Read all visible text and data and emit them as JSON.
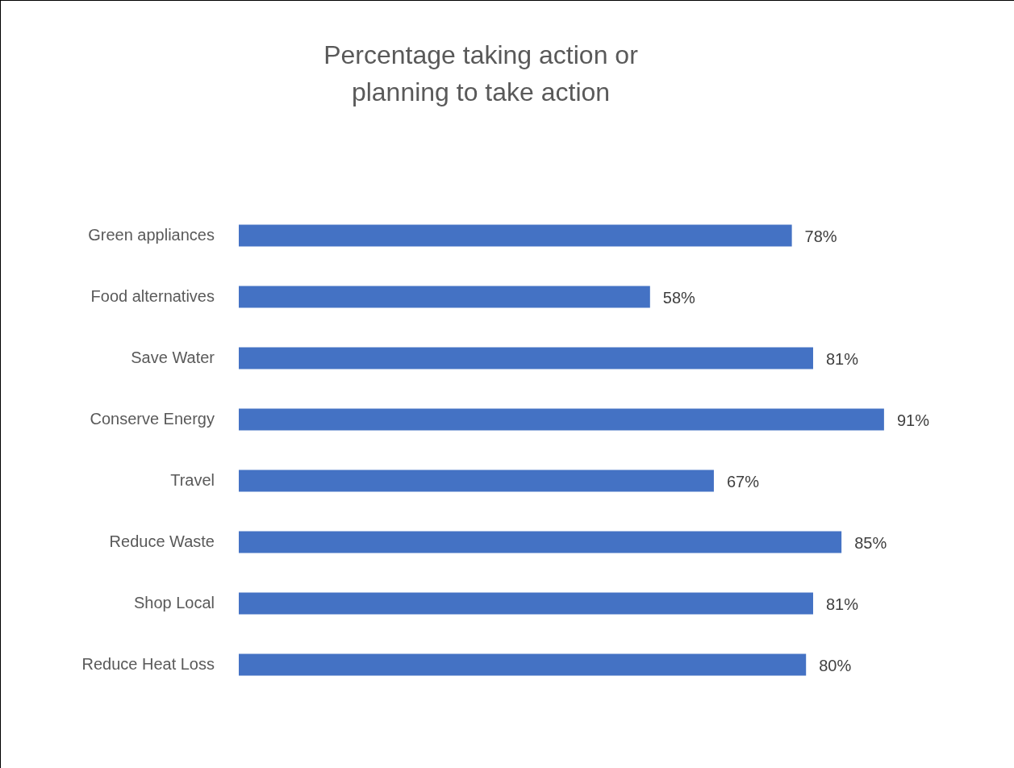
{
  "chart_data": {
    "type": "bar",
    "orientation": "horizontal",
    "title": "Percentage taking action or planning to take action",
    "categories": [
      "Green appliances",
      "Food alternatives",
      "Save Water",
      "Conserve Energy",
      "Travel",
      "Reduce Waste",
      "Shop Local",
      "Reduce Heat Loss"
    ],
    "values": [
      78,
      58,
      81,
      91,
      67,
      85,
      81,
      80
    ],
    "value_labels": [
      "78%",
      "58%",
      "81%",
      "91%",
      "67%",
      "85%",
      "81%",
      "80%"
    ],
    "color": "#4472c4"
  }
}
